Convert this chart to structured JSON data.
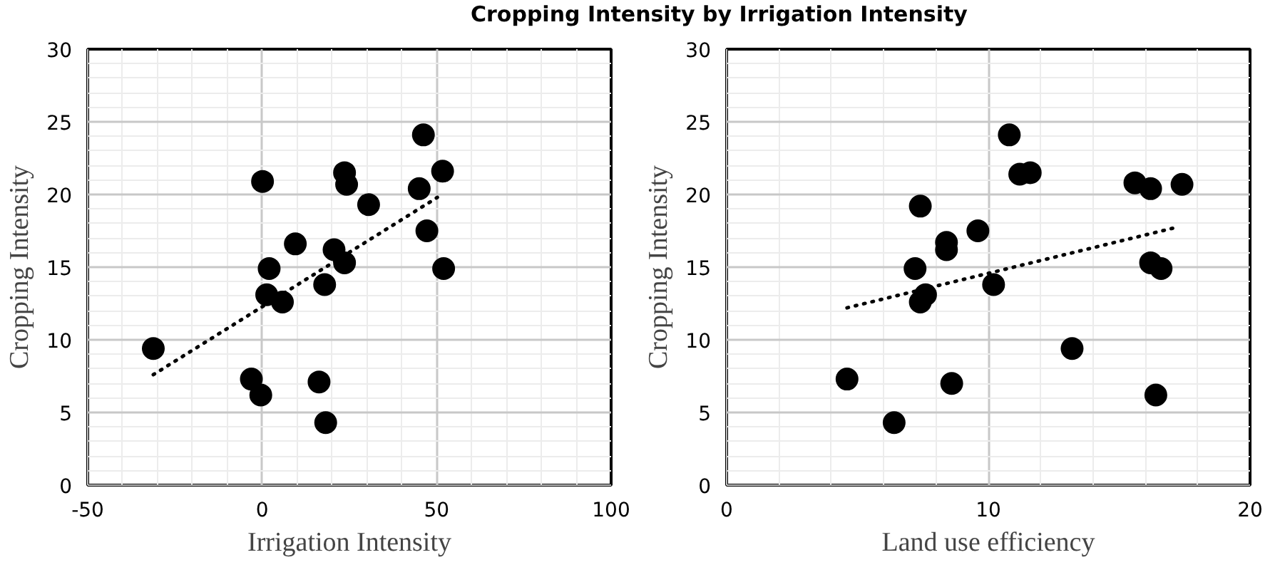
{
  "chart_data": [
    {
      "type": "scatter",
      "title": "Cropping Intensity by Irrigation Intensity",
      "xlabel": "Irrigation Intensity",
      "ylabel": "Cropping Intensity",
      "xlim": [
        -50,
        100
      ],
      "xticks": [
        -50,
        0,
        50,
        100
      ],
      "ylim": [
        0,
        30
      ],
      "yticks": [
        0,
        5,
        10,
        15,
        20,
        25,
        30
      ],
      "grid": true,
      "series": [
        {
          "marker": "circle",
          "color": "#000000",
          "x": [
            -31.2,
            0.1,
            -3.1,
            -0.4,
            2.0,
            1.3,
            5.8,
            9.5,
            17.9,
            20.6,
            23.6,
            23.6,
            24.2,
            30.5,
            16.3,
            18.2,
            46.2,
            45.0,
            51.7,
            47.2,
            52.0
          ],
          "values": [
            9.4,
            20.9,
            7.3,
            6.2,
            14.9,
            13.1,
            12.6,
            16.6,
            13.8,
            16.2,
            15.3,
            21.5,
            20.7,
            19.3,
            7.1,
            4.3,
            24.1,
            20.4,
            21.6,
            17.5,
            14.9
          ]
        },
        {
          "type": "line",
          "marker": "none",
          "line_style": "dotted",
          "color": "#000000",
          "x": [
            -31.2,
            50.2
          ],
          "values": [
            7.6,
            19.8
          ]
        }
      ]
    },
    {
      "type": "scatter",
      "xlabel": "Land use efficiency",
      "ylabel": "Cropping Intensity",
      "xlim": [
        0,
        20
      ],
      "xticks": [
        0,
        10,
        20
      ],
      "ylim": [
        0,
        30
      ],
      "yticks": [
        0,
        5,
        10,
        15,
        20,
        25,
        30
      ],
      "grid": true,
      "series": [
        {
          "marker": "circle",
          "color": "#000000",
          "x": [
            4.6,
            6.4,
            7.4,
            7.2,
            7.6,
            7.4,
            8.4,
            8.4,
            8.6,
            9.6,
            10.2,
            10.8,
            11.2,
            11.6,
            13.2,
            15.6,
            16.2,
            17.4,
            16.2,
            16.6,
            16.4
          ],
          "values": [
            7.3,
            4.3,
            19.2,
            14.9,
            13.1,
            12.6,
            16.7,
            16.2,
            7.0,
            17.5,
            13.8,
            24.1,
            21.4,
            21.5,
            9.4,
            20.8,
            20.4,
            20.7,
            15.3,
            14.9,
            6.2
          ]
        },
        {
          "type": "line",
          "marker": "none",
          "line_style": "dotted",
          "color": "#000000",
          "x": [
            4.6,
            17.1
          ],
          "values": [
            12.2,
            17.7
          ]
        }
      ]
    }
  ]
}
